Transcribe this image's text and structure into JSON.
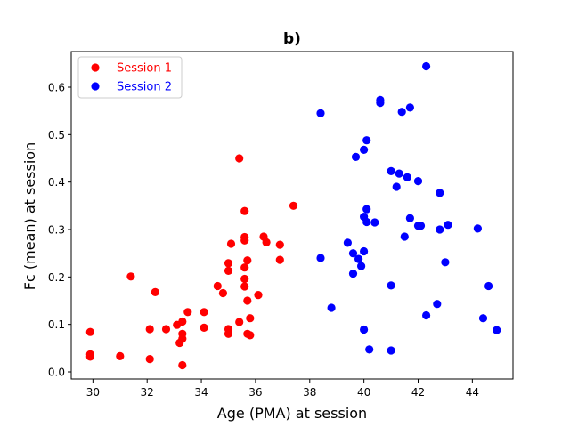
{
  "chart_data": {
    "type": "scatter",
    "title": "b)",
    "xlabel": "Age (PMA) at session",
    "ylabel": "Fc (mean) at session",
    "xlim": [
      29.2,
      45.5
    ],
    "ylim": [
      -0.015,
      0.675
    ],
    "xticks": [
      30,
      32,
      34,
      36,
      38,
      40,
      42,
      44
    ],
    "yticks": [
      0.0,
      0.1,
      0.2,
      0.3,
      0.4,
      0.5,
      0.6
    ],
    "xtick_labels": [
      "30",
      "32",
      "34",
      "36",
      "38",
      "40",
      "42",
      "44"
    ],
    "ytick_labels": [
      "0.0",
      "0.1",
      "0.2",
      "0.3",
      "0.4",
      "0.5",
      "0.6"
    ],
    "grid": false,
    "legend_position": "top-left",
    "series": [
      {
        "name": "Session 1",
        "color": "#ff0000",
        "points": [
          [
            29.9,
            0.084
          ],
          [
            29.9,
            0.037
          ],
          [
            29.9,
            0.032
          ],
          [
            31.0,
            0.033
          ],
          [
            31.4,
            0.201
          ],
          [
            32.1,
            0.027
          ],
          [
            32.1,
            0.09
          ],
          [
            32.3,
            0.168
          ],
          [
            32.7,
            0.09
          ],
          [
            33.1,
            0.099
          ],
          [
            33.2,
            0.061
          ],
          [
            33.3,
            0.07
          ],
          [
            33.3,
            0.08
          ],
          [
            33.3,
            0.106
          ],
          [
            33.3,
            0.014
          ],
          [
            33.5,
            0.126
          ],
          [
            34.1,
            0.126
          ],
          [
            34.1,
            0.093
          ],
          [
            34.6,
            0.181
          ],
          [
            34.8,
            0.166
          ],
          [
            35.0,
            0.229
          ],
          [
            35.0,
            0.213
          ],
          [
            35.0,
            0.09
          ],
          [
            35.0,
            0.08
          ],
          [
            35.1,
            0.27
          ],
          [
            35.4,
            0.105
          ],
          [
            35.4,
            0.45
          ],
          [
            35.6,
            0.339
          ],
          [
            35.6,
            0.284
          ],
          [
            35.6,
            0.277
          ],
          [
            35.6,
            0.22
          ],
          [
            35.6,
            0.196
          ],
          [
            35.6,
            0.18
          ],
          [
            35.7,
            0.15
          ],
          [
            35.7,
            0.235
          ],
          [
            35.7,
            0.08
          ],
          [
            35.8,
            0.077
          ],
          [
            35.8,
            0.113
          ],
          [
            36.1,
            0.162
          ],
          [
            36.3,
            0.285
          ],
          [
            36.4,
            0.273
          ],
          [
            36.9,
            0.268
          ],
          [
            36.9,
            0.236
          ],
          [
            37.4,
            0.35
          ]
        ]
      },
      {
        "name": "Session 2",
        "color": "#0000ff",
        "points": [
          [
            38.4,
            0.545
          ],
          [
            38.4,
            0.24
          ],
          [
            38.8,
            0.135
          ],
          [
            39.4,
            0.272
          ],
          [
            39.6,
            0.25
          ],
          [
            39.6,
            0.207
          ],
          [
            39.7,
            0.453
          ],
          [
            39.8,
            0.238
          ],
          [
            39.9,
            0.223
          ],
          [
            40.0,
            0.468
          ],
          [
            40.0,
            0.327
          ],
          [
            40.0,
            0.254
          ],
          [
            40.0,
            0.089
          ],
          [
            40.1,
            0.488
          ],
          [
            40.1,
            0.343
          ],
          [
            40.1,
            0.316
          ],
          [
            40.2,
            0.047
          ],
          [
            40.4,
            0.315
          ],
          [
            40.6,
            0.573
          ],
          [
            40.6,
            0.567
          ],
          [
            41.0,
            0.423
          ],
          [
            41.0,
            0.182
          ],
          [
            41.0,
            0.045
          ],
          [
            41.2,
            0.39
          ],
          [
            41.3,
            0.418
          ],
          [
            41.4,
            0.548
          ],
          [
            41.5,
            0.285
          ],
          [
            41.6,
            0.41
          ],
          [
            41.7,
            0.557
          ],
          [
            41.7,
            0.324
          ],
          [
            42.0,
            0.402
          ],
          [
            42.0,
            0.308
          ],
          [
            42.1,
            0.308
          ],
          [
            42.3,
            0.644
          ],
          [
            42.3,
            0.119
          ],
          [
            42.7,
            0.143
          ],
          [
            42.8,
            0.377
          ],
          [
            42.8,
            0.3
          ],
          [
            43.0,
            0.231
          ],
          [
            43.1,
            0.31
          ],
          [
            44.2,
            0.302
          ],
          [
            44.4,
            0.113
          ],
          [
            44.6,
            0.181
          ],
          [
            44.9,
            0.088
          ]
        ]
      }
    ]
  }
}
